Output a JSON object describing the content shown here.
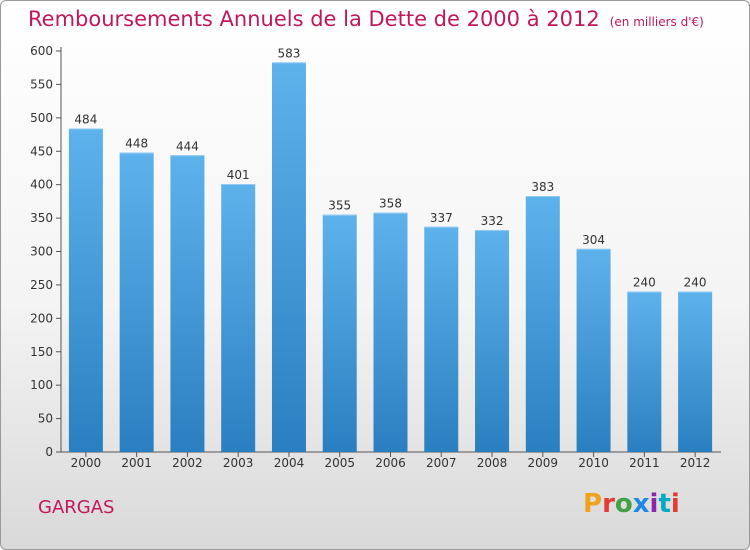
{
  "header": {
    "title": "Remboursements Annuels de la Dette de 2000 à 2012",
    "unit": "(en milliers d'€)"
  },
  "footer": {
    "city": "GARGAS",
    "logo_letters": [
      "P",
      "r",
      "o",
      "x",
      "i",
      "t",
      "i"
    ],
    "logo_colors": [
      "#f0a21b",
      "#e53935",
      "#43a047",
      "#1e88e5",
      "#8e24aa",
      "#00acc1",
      "#e53935"
    ]
  },
  "colors": {
    "bar_top": "#5eb2ec",
    "bar_bottom": "#2a7fc0",
    "title": "#c2185b"
  },
  "chart_data": {
    "type": "bar",
    "title": "Remboursements Annuels de la Dette de 2000 à 2012",
    "xlabel": "",
    "ylabel": "",
    "categories": [
      "2000",
      "2001",
      "2002",
      "2003",
      "2004",
      "2005",
      "2006",
      "2007",
      "2008",
      "2009",
      "2010",
      "2011",
      "2012"
    ],
    "values": [
      484,
      448,
      444,
      401,
      583,
      355,
      358,
      337,
      332,
      383,
      304,
      240,
      240
    ],
    "ylim": [
      0,
      600
    ],
    "yticks": [
      0,
      50,
      100,
      150,
      200,
      250,
      300,
      350,
      400,
      450,
      500,
      550,
      600
    ],
    "grid": false,
    "data_labels": true
  }
}
